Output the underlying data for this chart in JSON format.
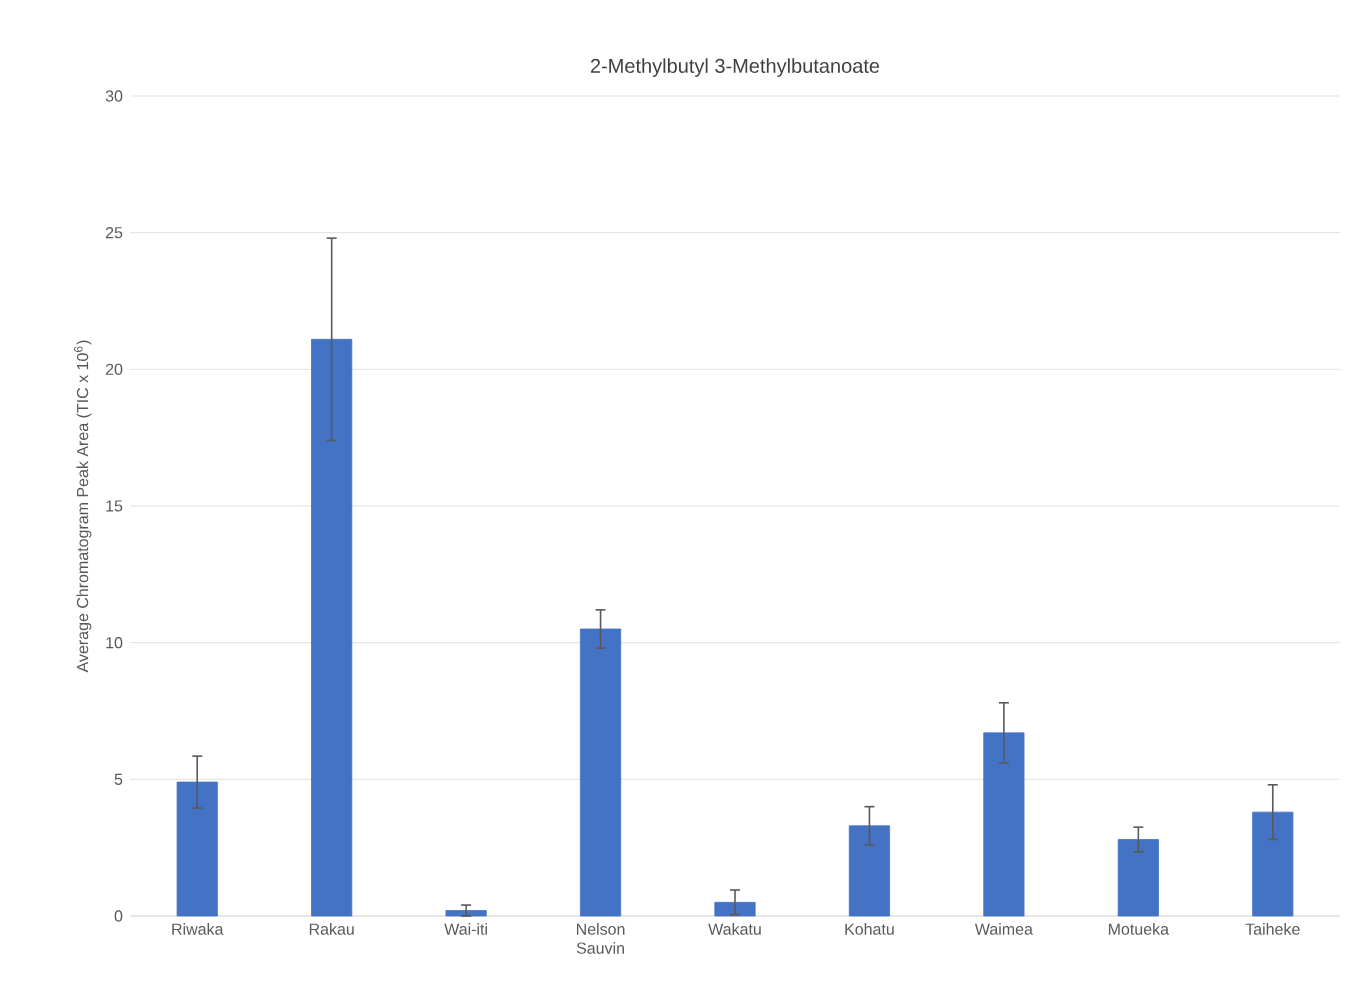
{
  "chart_data": {
    "type": "bar",
    "title": "2-Methylbutyl 3-Methylbutanoate",
    "ylabel": "Average Chromatogram Peak Area (TIC x 10$^{6}$)",
    "categories": [
      "Riwaka",
      "Rakau",
      "Wai-iti",
      "Nelson Sauvin",
      "Wakatu",
      "Kohatu",
      "Waimea",
      "Motueka",
      "Taiheke"
    ],
    "values": [
      4.9,
      21.1,
      0.2,
      10.5,
      0.5,
      3.3,
      6.7,
      2.8,
      3.8
    ],
    "errors": [
      0.95,
      3.7,
      0.2,
      0.7,
      0.45,
      0.7,
      1.1,
      0.45,
      1.0
    ],
    "color": "#4472c4",
    "ylim": [
      0,
      30
    ],
    "yticks": [
      0,
      5,
      10,
      15,
      20,
      25,
      30
    ],
    "grid": "y"
  }
}
